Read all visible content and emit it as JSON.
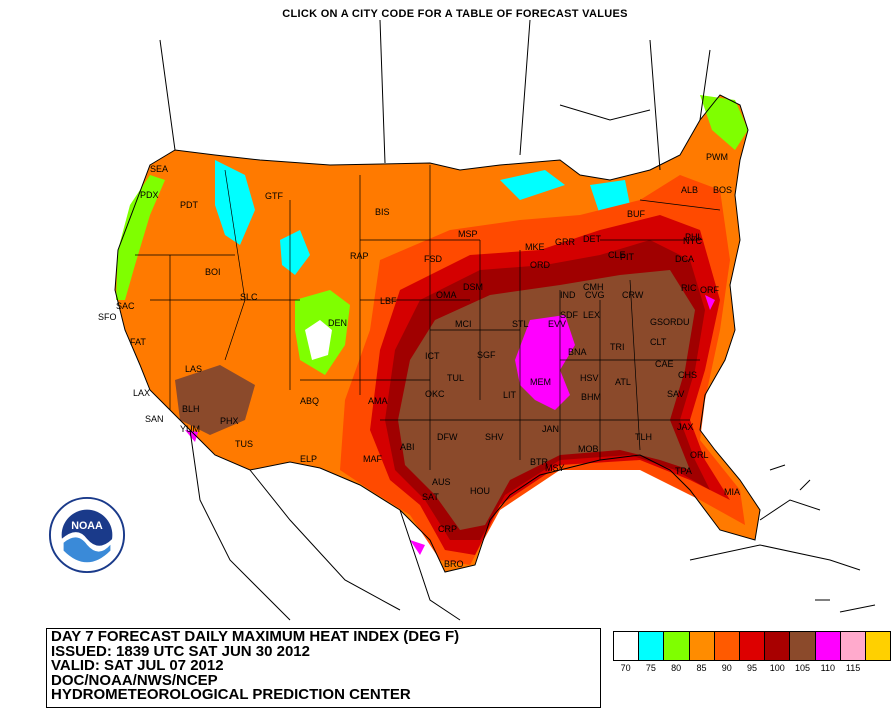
{
  "header": {
    "instruction": "CLICK ON A CITY CODE FOR A TABLE OF FORECAST VALUES"
  },
  "info": {
    "line1": "DAY 7 FORECAST DAILY MAXIMUM HEAT INDEX (DEG F)",
    "line2": "ISSUED: 1839 UTC SAT JUN 30 2012",
    "line3": "VALID: SAT JUL 07 2012",
    "line4": "DOC/NOAA/NWS/NCEP",
    "line5": "HYDROMETEOROLOGICAL PREDICTION CENTER"
  },
  "logo": {
    "text": "NOAA",
    "icon": "noaa-logo-icon"
  },
  "legend": [
    {
      "color": "#ffffff",
      "label": "70"
    },
    {
      "color": "#00ffff",
      "label": "75"
    },
    {
      "color": "#7fff00",
      "label": "80"
    },
    {
      "color": "#ff8c00",
      "label": "85"
    },
    {
      "color": "#ff5a00",
      "label": "90"
    },
    {
      "color": "#dd0000",
      "label": "95"
    },
    {
      "color": "#a80000",
      "label": "100"
    },
    {
      "color": "#8b4a2b",
      "label": "105"
    },
    {
      "color": "#ff00ff",
      "label": "110"
    },
    {
      "color": "#ffaacc",
      "label": "115"
    },
    {
      "color": "#ffd000",
      "label": ""
    }
  ],
  "cities": [
    "SEA",
    "PDX",
    "PDT",
    "GTF",
    "BIS",
    "MSP",
    "FSD",
    "RAP",
    "BOI",
    "SLC",
    "DEN",
    "LBF",
    "OMA",
    "DSM",
    "MKE",
    "GRR",
    "ORD",
    "DET",
    "CLE",
    "BUF",
    "ALB",
    "PWM",
    "BOS",
    "NYC",
    "PHL",
    "DCA",
    "RIC",
    "ORF",
    "PIT",
    "CMH",
    "IND",
    "SDF",
    "LEX",
    "CVG",
    "CRW",
    "SAC",
    "SFO",
    "FAT",
    "LAS",
    "LAX",
    "SAN",
    "YUM",
    "BLH",
    "PHX",
    "TUS",
    "ABQ",
    "AMA",
    "ELP",
    "MAF",
    "ABI",
    "OKC",
    "TUL",
    "ICT",
    "MCI",
    "STL",
    "SGF",
    "LIT",
    "MEM",
    "BNA",
    "TRI",
    "CLT",
    "RDU",
    "GSO",
    "CAE",
    "CHS",
    "ATL",
    "BHM",
    "HSV",
    "SAV",
    "JAN",
    "SHV",
    "DFW",
    "AUS",
    "SAT",
    "HOU",
    "CRP",
    "BRO",
    "MSY",
    "BTR",
    "MOB",
    "TLH",
    "JAX",
    "ORL",
    "TPA",
    "MIA",
    "EVV"
  ]
}
